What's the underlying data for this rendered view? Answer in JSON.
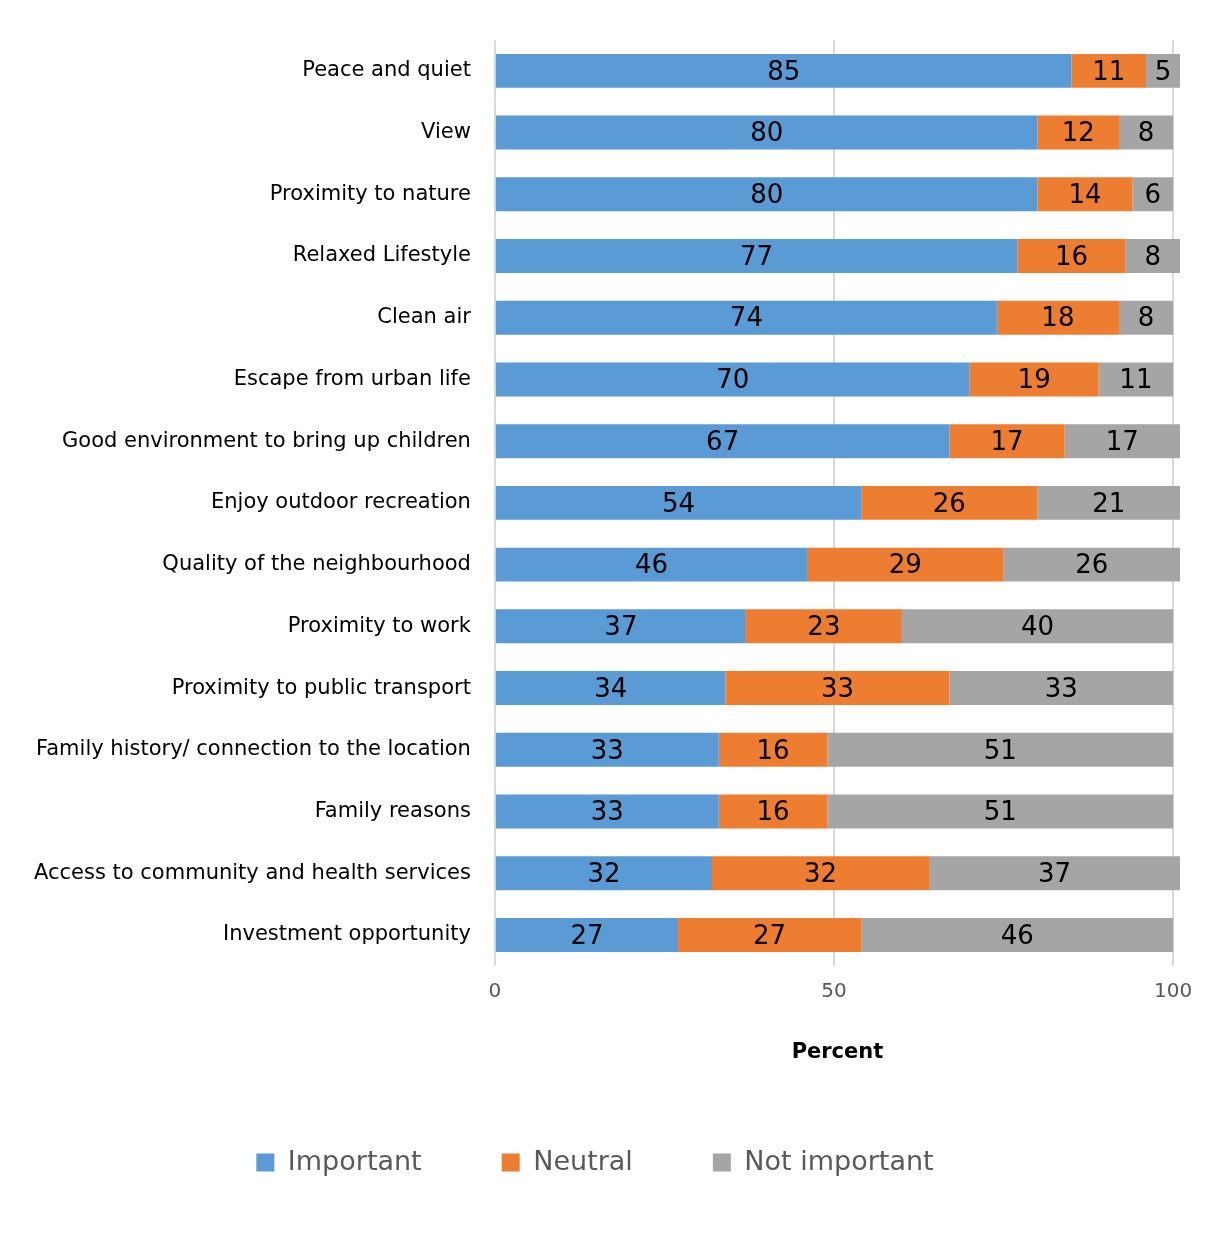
{
  "chart_data": {
    "type": "bar",
    "orientation": "horizontal",
    "stacked": true,
    "xlabel": "Percent",
    "categories": [
      "Peace and quiet",
      "View",
      "Proximity to nature",
      "Relaxed Lifestyle",
      "Clean air",
      "Escape from urban life",
      "Good environment to bring up children",
      "Enjoy outdoor recreation",
      "Quality of the neighbourhood",
      "Proximity to work",
      "Proximity to public transport",
      "Family history/ connection to the location",
      "Family reasons",
      "Access to community and health services",
      "Investment opportunity"
    ],
    "series": [
      {
        "name": "Important",
        "color": "#5b9bd5",
        "values": [
          85,
          80,
          80,
          77,
          74,
          70,
          67,
          54,
          46,
          37,
          34,
          33,
          33,
          32,
          27
        ]
      },
      {
        "name": "Neutral",
        "color": "#ed7d31",
        "values": [
          11,
          12,
          14,
          16,
          18,
          19,
          17,
          26,
          29,
          23,
          33,
          16,
          16,
          32,
          27
        ]
      },
      {
        "name": "Not important",
        "color": "#a5a5a5",
        "values": [
          5,
          8,
          6,
          8,
          8,
          11,
          17,
          21,
          26,
          40,
          33,
          51,
          51,
          37,
          46
        ]
      }
    ],
    "xlim": [
      0,
      101
    ],
    "xticks": [
      0,
      50,
      100
    ],
    "grid": "x",
    "legend": "bottom",
    "data_labels": true
  }
}
